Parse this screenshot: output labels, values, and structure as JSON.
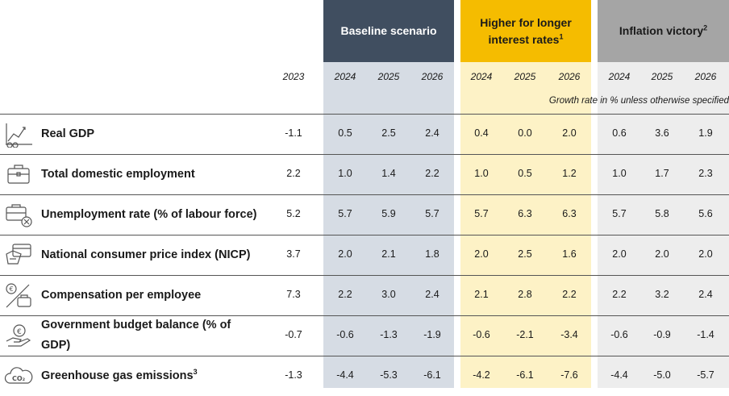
{
  "chart_data": {
    "type": "table",
    "base_year": "2023",
    "groups": [
      {
        "id": "base",
        "title": "Baseline scenario",
        "sup": "",
        "years": [
          "2024",
          "2025",
          "2026"
        ],
        "color": "#404e60",
        "tint": "#d6dce4"
      },
      {
        "id": "high",
        "title": "Higher for longer interest rates",
        "sup": "1",
        "years": [
          "2024",
          "2025",
          "2026"
        ],
        "color": "#f5bc00",
        "tint": "#fdf2c6"
      },
      {
        "id": "infl",
        "title": "Inflation victory",
        "sup": "2",
        "years": [
          "2024",
          "2025",
          "2026"
        ],
        "color": "#a5a5a5",
        "tint": "#ededed"
      }
    ],
    "note": "Growth rate in % unless otherwise specified",
    "rows": [
      {
        "label": "Real GDP",
        "sup": "",
        "icon": "growth-chart-icon",
        "values": [
          "-1.1",
          "0.5",
          "2.5",
          "2.4",
          "0.4",
          "0.0",
          "2.0",
          "0.6",
          "3.6",
          "1.9"
        ]
      },
      {
        "label": "Total domestic employment",
        "sup": "",
        "icon": "briefcase-icon",
        "values": [
          "2.2",
          "1.0",
          "1.4",
          "2.2",
          "1.0",
          "0.5",
          "1.2",
          "1.0",
          "1.7",
          "2.3"
        ]
      },
      {
        "label": "Unemployment rate (% of labour force)",
        "sup": "",
        "icon": "briefcase-x-icon",
        "values": [
          "5.2",
          "5.7",
          "5.9",
          "5.7",
          "5.7",
          "6.3",
          "6.3",
          "5.7",
          "5.8",
          "5.6"
        ]
      },
      {
        "label": "National consumer price index (NICP)",
        "sup": "",
        "icon": "card-payment-icon",
        "values": [
          "3.7",
          "2.0",
          "2.1",
          "1.8",
          "2.0",
          "2.5",
          "1.6",
          "2.0",
          "2.0",
          "2.0"
        ]
      },
      {
        "label": "Compensation per employee",
        "sup": "",
        "icon": "coin-wallet-icon",
        "values": [
          "7.3",
          "2.2",
          "3.0",
          "2.4",
          "2.1",
          "2.8",
          "2.2",
          "2.2",
          "3.2",
          "2.4"
        ]
      },
      {
        "label": "Government budget balance (% of GDP)",
        "sup": "",
        "icon": "hand-coin-icon",
        "values": [
          "-0.7",
          "-0.6",
          "-1.3",
          "-1.9",
          "-0.6",
          "-2.1",
          "-3.4",
          "-0.6",
          "-0.9",
          "-1.4"
        ]
      },
      {
        "label": "Greenhouse gas emissions",
        "sup": "3",
        "icon": "co2-cloud-icon",
        "values": [
          "-1.3",
          "-4.4",
          "-5.3",
          "-6.1",
          "-4.2",
          "-6.1",
          "-7.6",
          "-4.4",
          "-5.0",
          "-5.7"
        ]
      }
    ]
  }
}
